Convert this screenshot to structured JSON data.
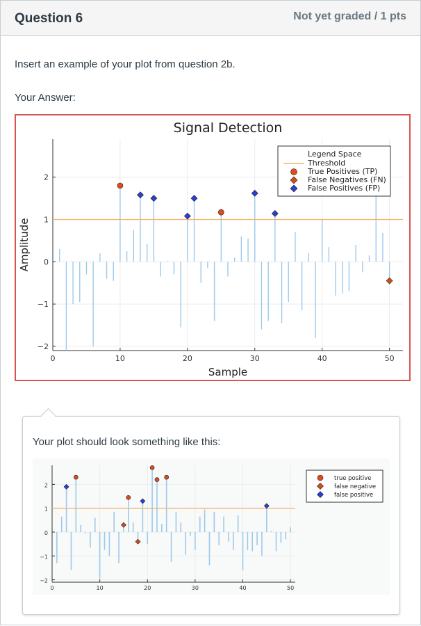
{
  "question": {
    "title": "Question 6",
    "status": "Not yet graded / 1 pts"
  },
  "prompt": "Insert an example of your plot from question 2b.",
  "your_answer_label": "Your Answer:",
  "callout_text": "Your plot should look something like this:",
  "colors": {
    "stem": "#9ec9ea",
    "threshold": "#f5b36b",
    "tp": "#e24a1c",
    "fn": "#d64a1a",
    "fp": "#2b3ed6",
    "answer_border": "#d9534f"
  },
  "chart_data": [
    {
      "type": "scatter",
      "title": "Signal Detection",
      "xlabel": "Sample",
      "ylabel": "Amplitude",
      "xlim": [
        0,
        52
      ],
      "ylim": [
        -2.1,
        2.9
      ],
      "xticks": [
        0,
        10,
        20,
        30,
        40,
        50
      ],
      "yticks": [
        -2,
        -1,
        0,
        1,
        2
      ],
      "threshold": 1,
      "grid": true,
      "legend_position": "top-right",
      "legend": [
        "Legend Space",
        "Threshold",
        "True Positives (TP)",
        "False Negatives (FN)",
        "False Positives (FP)"
      ],
      "signal": {
        "x": [
          1,
          2,
          3,
          4,
          5,
          6,
          7,
          8,
          9,
          10,
          11,
          12,
          13,
          14,
          15,
          16,
          17,
          18,
          19,
          20,
          21,
          22,
          23,
          24,
          25,
          26,
          27,
          28,
          29,
          30,
          31,
          32,
          33,
          34,
          35,
          36,
          37,
          38,
          39,
          40,
          41,
          42,
          43,
          44,
          45,
          46,
          47,
          48,
          49,
          50
        ],
        "y": [
          0.3,
          -2.1,
          -1.0,
          -0.95,
          -0.3,
          -2.0,
          0.2,
          -0.4,
          -0.45,
          1.8,
          0.25,
          0.75,
          1.58,
          0.42,
          1.5,
          -0.35,
          0.02,
          -0.3,
          -1.55,
          1.08,
          1.5,
          -0.5,
          -0.15,
          -1.4,
          1.17,
          -0.35,
          0.1,
          0.6,
          0.55,
          1.62,
          -1.6,
          -1.4,
          1.14,
          -1.45,
          -0.95,
          0.7,
          -1.15,
          0.2,
          -1.8,
          1.0,
          0.35,
          -0.8,
          -0.75,
          -0.7,
          0.4,
          -0.25,
          0.15,
          1.6,
          0.68,
          -0.45
        ]
      },
      "true_positives": {
        "x": [
          10,
          25
        ],
        "y": [
          1.8,
          1.17
        ]
      },
      "false_negatives": {
        "x": [
          50
        ],
        "y": [
          -0.45
        ]
      },
      "false_positives": {
        "x": [
          13,
          15,
          20,
          21,
          30,
          33
        ],
        "y": [
          1.58,
          1.5,
          1.08,
          1.5,
          1.62,
          1.14
        ]
      }
    },
    {
      "type": "scatter",
      "title": "",
      "xlabel": "",
      "ylabel": "",
      "xlim": [
        0,
        51
      ],
      "ylim": [
        -2.1,
        2.8
      ],
      "xticks": [
        0,
        10,
        20,
        30,
        40,
        50
      ],
      "yticks": [
        -2,
        -1,
        0,
        1,
        2
      ],
      "threshold": 1,
      "grid": true,
      "legend_position": "top-right",
      "legend": [
        "true positive",
        "false negative",
        "false positive"
      ],
      "signal": {
        "x": [
          1,
          2,
          3,
          4,
          5,
          6,
          7,
          8,
          9,
          10,
          11,
          12,
          13,
          14,
          15,
          16,
          17,
          18,
          19,
          20,
          21,
          22,
          23,
          24,
          25,
          26,
          27,
          28,
          29,
          30,
          31,
          32,
          33,
          34,
          35,
          36,
          37,
          38,
          39,
          40,
          41,
          42,
          43,
          44,
          45,
          46,
          47,
          48,
          49,
          50
        ],
        "y": [
          -1.3,
          0.65,
          1.9,
          -1.6,
          2.3,
          0.3,
          -0.05,
          -0.65,
          0.6,
          -1.95,
          -0.75,
          -1.0,
          0.85,
          -1.3,
          0.3,
          1.45,
          0.4,
          -0.4,
          1.3,
          -0.5,
          2.7,
          2.2,
          0.35,
          2.3,
          -1.25,
          0.85,
          0.4,
          -0.95,
          -0.15,
          -0.75,
          0.65,
          0.95,
          -1.4,
          0.85,
          -0.55,
          0.65,
          -0.4,
          -0.75,
          0.7,
          -1.6,
          -0.75,
          -0.8,
          -0.55,
          -1.0,
          1.1,
          0.05,
          -0.8,
          -0.45,
          -0.3,
          0.2
        ]
      },
      "true_positives": {
        "x": [
          5,
          16,
          21,
          22,
          24
        ],
        "y": [
          2.3,
          1.45,
          2.7,
          2.2,
          2.3
        ]
      },
      "false_negatives": {
        "x": [
          15,
          18
        ],
        "y": [
          0.3,
          -0.4
        ]
      },
      "false_positives": {
        "x": [
          3,
          19,
          45
        ],
        "y": [
          1.9,
          1.3,
          1.1
        ]
      }
    }
  ]
}
